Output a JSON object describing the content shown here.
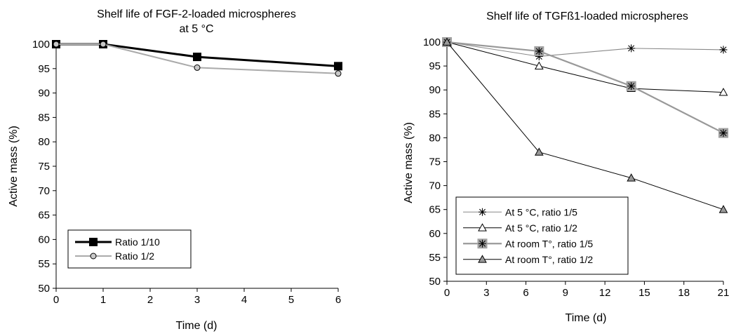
{
  "chart_data": [
    {
      "type": "line",
      "title": "Shelf life of FGF-2-loaded microspheres",
      "subtitle": "at 5 °C",
      "xlabel": "Time (d)",
      "ylabel": "Active mass (%)",
      "xlim": [
        0,
        6
      ],
      "ylim": [
        50,
        100
      ],
      "xticks": [
        0,
        1,
        2,
        3,
        4,
        5,
        6
      ],
      "yticks": [
        50,
        55,
        60,
        65,
        70,
        75,
        80,
        85,
        90,
        95,
        100
      ],
      "grid": false,
      "legend_position": "bottom-left",
      "series": [
        {
          "name": "Ratio 1/10",
          "x": [
            0,
            1,
            3,
            6
          ],
          "y": [
            100,
            100,
            97.4,
            95.5
          ],
          "color": "#000000",
          "marker": "square-filled"
        },
        {
          "name": "Ratio 1/2",
          "x": [
            0,
            1,
            3,
            6
          ],
          "y": [
            100,
            100,
            95.2,
            94
          ],
          "color": "#aaaaaa",
          "marker": "circle-gray"
        }
      ]
    },
    {
      "type": "line",
      "title": "Shelf life of TGFß1-loaded microspheres",
      "xlabel": "Time (d)",
      "ylabel": "Active mass (%)",
      "xlim": [
        0,
        21
      ],
      "ylim": [
        50,
        100
      ],
      "xticks": [
        0,
        3,
        6,
        9,
        12,
        15,
        18,
        21
      ],
      "yticks": [
        50,
        55,
        60,
        65,
        70,
        75,
        80,
        85,
        90,
        95,
        100
      ],
      "grid": false,
      "legend_position": "bottom-left",
      "series": [
        {
          "name": "At 5 °C, ratio 1/5",
          "x": [
            0,
            7,
            14,
            21
          ],
          "y": [
            100,
            97,
            98.7,
            98.4
          ],
          "color": "#888888",
          "marker": "star"
        },
        {
          "name": "At 5 °C, ratio 1/2",
          "x": [
            0,
            7,
            14,
            21
          ],
          "y": [
            100,
            95,
            90.3,
            89.5
          ],
          "color": "#000000",
          "marker": "triangle-open"
        },
        {
          "name": "At room T°, ratio 1/5",
          "x": [
            0,
            7,
            14,
            21
          ],
          "y": [
            100,
            98.1,
            90.8,
            81
          ],
          "color": "#999999",
          "marker": "star-square"
        },
        {
          "name": "At room T°, ratio 1/2",
          "x": [
            0,
            7,
            14,
            21
          ],
          "y": [
            100,
            77,
            71.6,
            65
          ],
          "color": "#000000",
          "marker": "triangle-gray"
        }
      ]
    }
  ]
}
